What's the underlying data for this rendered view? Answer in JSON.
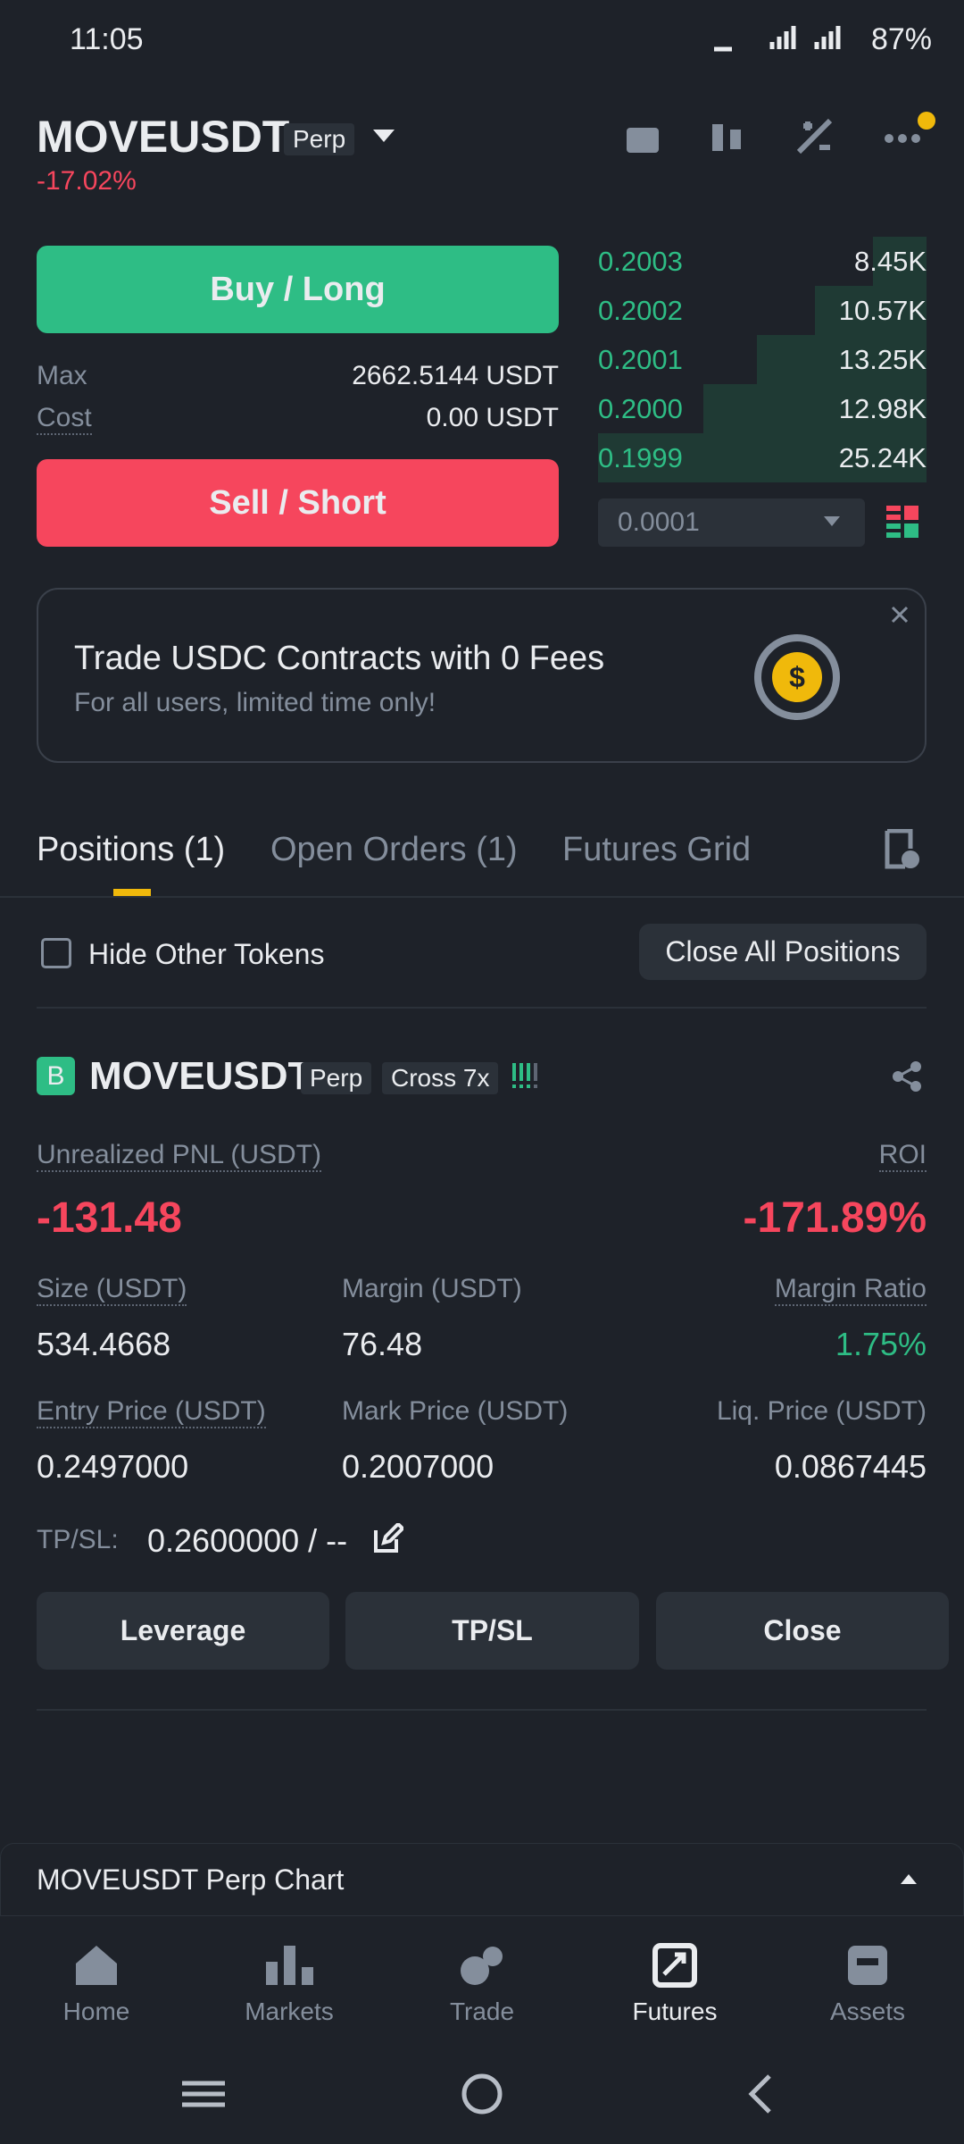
{
  "status": {
    "time": "11:05",
    "battery": "87%"
  },
  "header": {
    "symbol": "MOVEUSDT",
    "tag": "Perp",
    "change": "-17.02%"
  },
  "trade": {
    "buy": "Buy / Long",
    "max_label": "Max",
    "max_value": "2662.5144 USDT",
    "cost_label": "Cost",
    "cost_value": "0.00 USDT",
    "sell": "Sell / Short"
  },
  "order_book": {
    "rows": [
      [
        "0.2003",
        "8.45K"
      ],
      [
        "0.2002",
        "10.57K"
      ],
      [
        "0.2001",
        "13.25K"
      ],
      [
        "0.2000",
        "12.98K"
      ],
      [
        "0.1999",
        "25.24K"
      ]
    ],
    "step": "0.0001"
  },
  "banner": {
    "title": "Trade USDC Contracts with 0 Fees",
    "subtitle": "For all users, limited time only!"
  },
  "tabs": [
    "Positions (1)",
    "Open Orders (1)",
    "Futures Grid"
  ],
  "filter": {
    "hide": "Hide Other Tokens",
    "close_all": "Close All Positions"
  },
  "position": {
    "badge": "B",
    "symbol": "MOVEUSDT",
    "tag": "Perp",
    "mode": "Cross 7x",
    "pnl_label": "Unrealized PNL (USDT)",
    "pnl_value": "-131.48",
    "roi_label": "ROI",
    "roi_value": "-171.89%",
    "size_label": "Size (USDT)",
    "size_value": "534.4668",
    "margin_label": "Margin (USDT)",
    "margin_value": "76.48",
    "ratio_label": "Margin Ratio",
    "ratio_value": "1.75%",
    "entry_label": "Entry Price (USDT)",
    "entry_value": "0.2497000",
    "mark_label": "Mark Price (USDT)",
    "mark_value": "0.2007000",
    "liq_label": "Liq. Price (USDT)",
    "liq_value": "0.0867445",
    "tpsl_label": "TP/SL:",
    "tpsl_value": "0.2600000 / --",
    "buttons": [
      "Leverage",
      "TP/SL",
      "Close"
    ]
  },
  "chart_bar": "MOVEUSDT Perp Chart",
  "nav": [
    "Home",
    "Markets",
    "Trade",
    "Futures",
    "Assets"
  ]
}
